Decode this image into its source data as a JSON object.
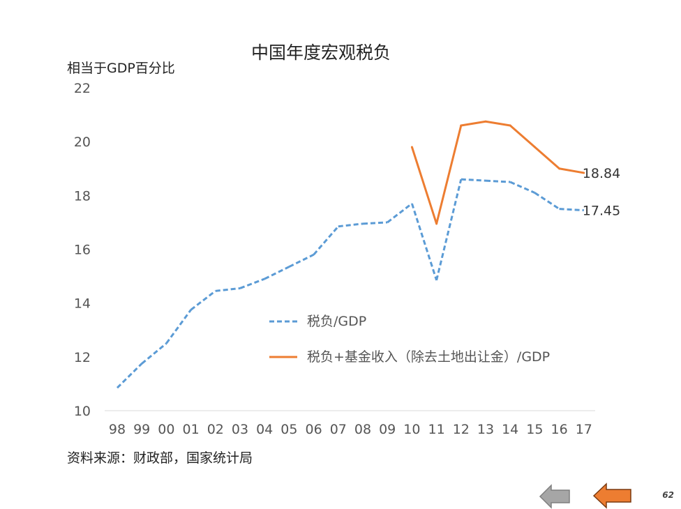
{
  "chart_data": {
    "type": "line",
    "title": "中国年度宏观税负",
    "ylabel": "相当于GDP百分比",
    "xlabel": "",
    "categories": [
      "98",
      "99",
      "00",
      "01",
      "02",
      "03",
      "04",
      "05",
      "06",
      "07",
      "08",
      "09",
      "10",
      "11",
      "12",
      "13",
      "14",
      "15",
      "16",
      "17"
    ],
    "ylim": [
      10,
      22
    ],
    "yticks": [
      10,
      12,
      14,
      16,
      18,
      20,
      22
    ],
    "grid": false,
    "legend_position": "center",
    "series": [
      {
        "name": "税负/GDP",
        "style": "dashed",
        "color": "#5b9bd5",
        "values": [
          10.85,
          11.75,
          12.5,
          13.75,
          14.45,
          14.55,
          14.9,
          15.35,
          15.8,
          16.85,
          16.95,
          17.0,
          17.7,
          14.85,
          18.6,
          18.55,
          18.5,
          18.1,
          17.5,
          17.45
        ]
      },
      {
        "name": "税负+基金收入（除去土地出让金）/GDP",
        "style": "solid",
        "color": "#ed7d31",
        "values": [
          null,
          null,
          null,
          null,
          null,
          null,
          null,
          null,
          null,
          null,
          null,
          null,
          19.8,
          16.95,
          20.6,
          20.75,
          20.6,
          19.8,
          19.0,
          18.84
        ]
      }
    ],
    "annotations": [
      {
        "series": 1,
        "index": 19,
        "text": "18.84"
      },
      {
        "series": 0,
        "index": 19,
        "text": "17.45"
      }
    ]
  },
  "source_note": "资料来源：财政部，国家统计局",
  "page_number": "62",
  "nav": {
    "back_color": "#a6a6a6",
    "forward_color": "#ed7d31"
  }
}
